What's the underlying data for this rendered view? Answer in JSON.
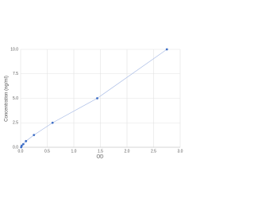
{
  "chart_data": {
    "type": "scatter",
    "x_label": "OD",
    "y_label": "Concentration (ng/ml)",
    "series": [
      {
        "x": [
          0.01,
          0.02,
          0.05,
          0.1,
          0.25,
          0.6,
          1.44,
          2.75
        ],
        "values": [
          0,
          0.156,
          0.312,
          0.625,
          1.25,
          2.5,
          5,
          10
        ],
        "color": "#3f6fc6",
        "line_color": "#a9bce6"
      }
    ],
    "xlim": [
      0,
      3
    ],
    "ylim": [
      0,
      10
    ],
    "xticks": [
      {
        "value": 0,
        "label": "0.0"
      },
      {
        "value": 0.5,
        "label": "0.5"
      },
      {
        "value": 1,
        "label": "1.0"
      },
      {
        "value": 1.5,
        "label": "1.5"
      },
      {
        "value": 2,
        "label": "2.0"
      },
      {
        "value": 2.5,
        "label": "2.5"
      },
      {
        "value": 3,
        "label": "3.0"
      }
    ],
    "yticks": [
      {
        "value": 0,
        "label": "0.0"
      },
      {
        "value": 2.5,
        "label": "2.5"
      },
      {
        "value": 5,
        "label": "5.0"
      },
      {
        "value": 7.5,
        "label": "7.5"
      },
      {
        "value": 10,
        "label": "10.0"
      }
    ],
    "grid": true
  }
}
